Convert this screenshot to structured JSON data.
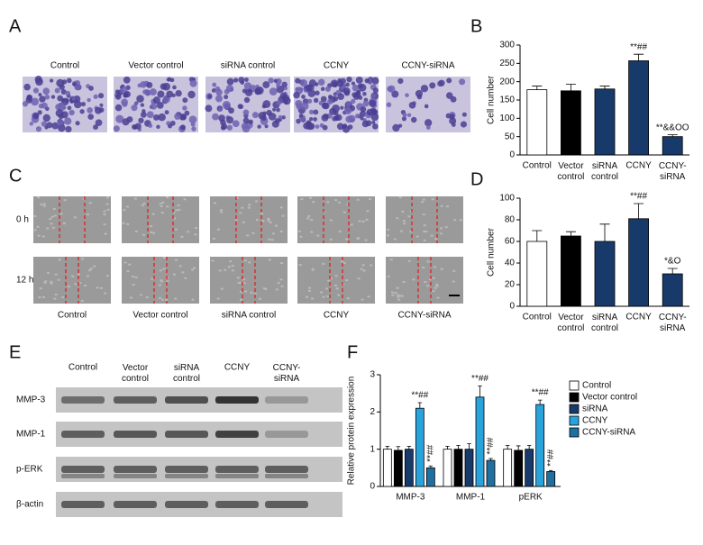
{
  "panel_letters": [
    "A",
    "B",
    "C",
    "D",
    "E",
    "F"
  ],
  "panel_a": {
    "columns": [
      "Control",
      "Vector control",
      "siRNA control",
      "CCNY",
      "CCNY-siRNA"
    ]
  },
  "panel_c": {
    "columns": [
      "Control",
      "Vector control",
      "siRNA control",
      "CCNY",
      "CCNY-siRNA"
    ],
    "rows": [
      "0 h",
      "12 h"
    ]
  },
  "panel_e": {
    "columns": [
      "Control",
      "Vector control",
      "siRNA control",
      "CCNY",
      "CCNY-siRNA"
    ],
    "rows": [
      "MMP-3",
      "MMP-1",
      "p-ERK",
      "β-actin"
    ]
  },
  "chart_data": [
    {
      "type": "bar",
      "y_label": "Cell number",
      "categories": [
        "Control",
        "Vector control",
        "siRNA control",
        "CCNY",
        "CCNY-siRNA"
      ],
      "values": [
        178,
        175,
        180,
        257,
        50
      ],
      "errors": [
        10,
        18,
        8,
        18,
        5
      ],
      "colors": [
        "#ffffff",
        "#000000",
        "#173a6a",
        "#173a6a",
        "#173a6a"
      ],
      "annotations": [
        null,
        null,
        null,
        "**##",
        "**&&OO"
      ],
      "ylim": [
        0,
        300
      ],
      "yticks": [
        0,
        50,
        100,
        150,
        200,
        250,
        300
      ]
    },
    {
      "type": "bar",
      "y_label": "Cell number",
      "categories": [
        "Control",
        "Vector control",
        "siRNA control",
        "CCNY",
        "CCNY-siRNA"
      ],
      "values": [
        60,
        65,
        60,
        81,
        30
      ],
      "errors": [
        10,
        4,
        16,
        14,
        5
      ],
      "colors": [
        "#ffffff",
        "#000000",
        "#173a6a",
        "#173a6a",
        "#173a6a"
      ],
      "annotations": [
        null,
        null,
        null,
        "**##",
        "*&O"
      ],
      "ylim": [
        0,
        100
      ],
      "yticks": [
        0,
        20,
        40,
        60,
        80,
        100
      ]
    },
    {
      "type": "grouped_bar",
      "y_label": "Relative protein expression",
      "categories": [
        "MMP-3",
        "MMP-1",
        "pERK"
      ],
      "series": [
        {
          "name": "Control",
          "color": "#ffffff",
          "values": [
            1.0,
            1.0,
            1.0
          ],
          "errors": [
            0.08,
            0.08,
            0.1
          ]
        },
        {
          "name": "Vector control",
          "color": "#000000",
          "values": [
            0.97,
            1.0,
            0.97
          ],
          "errors": [
            0.1,
            0.1,
            0.12
          ]
        },
        {
          "name": "siRNA",
          "color": "#173a6a",
          "values": [
            1.0,
            1.0,
            1.0
          ],
          "errors": [
            0.08,
            0.15,
            0.1
          ]
        },
        {
          "name": "CCNY",
          "color": "#29a3dc",
          "values": [
            2.1,
            2.4,
            2.2
          ],
          "errors": [
            0.15,
            0.3,
            0.12
          ],
          "annotations": [
            "**##",
            "**##",
            "**##"
          ]
        },
        {
          "name": "CCNY-siRNA",
          "color": "#1f6fa0",
          "values": [
            0.5,
            0.7,
            0.4
          ],
          "errors": [
            0.05,
            0.05,
            0.03
          ],
          "annotations": [
            "**##",
            "**##",
            "**##"
          ]
        }
      ],
      "legend": "right",
      "ylim": [
        0,
        3
      ],
      "yticks": [
        0,
        1,
        2,
        3
      ]
    }
  ]
}
